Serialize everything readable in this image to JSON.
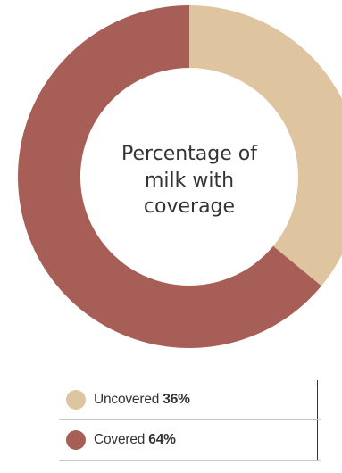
{
  "chart_data": {
    "type": "pie",
    "title": "Percentage of milk with coverage",
    "title_lines": [
      "Percentage of",
      "milk with",
      "coverage"
    ],
    "slices": [
      {
        "label": "Uncovered",
        "value": 36,
        "display": "36%",
        "color": "#dfc59f"
      },
      {
        "label": "Covered",
        "value": 64,
        "display": "64%",
        "color": "#a75e56"
      }
    ],
    "legend_placement": "bottom"
  }
}
